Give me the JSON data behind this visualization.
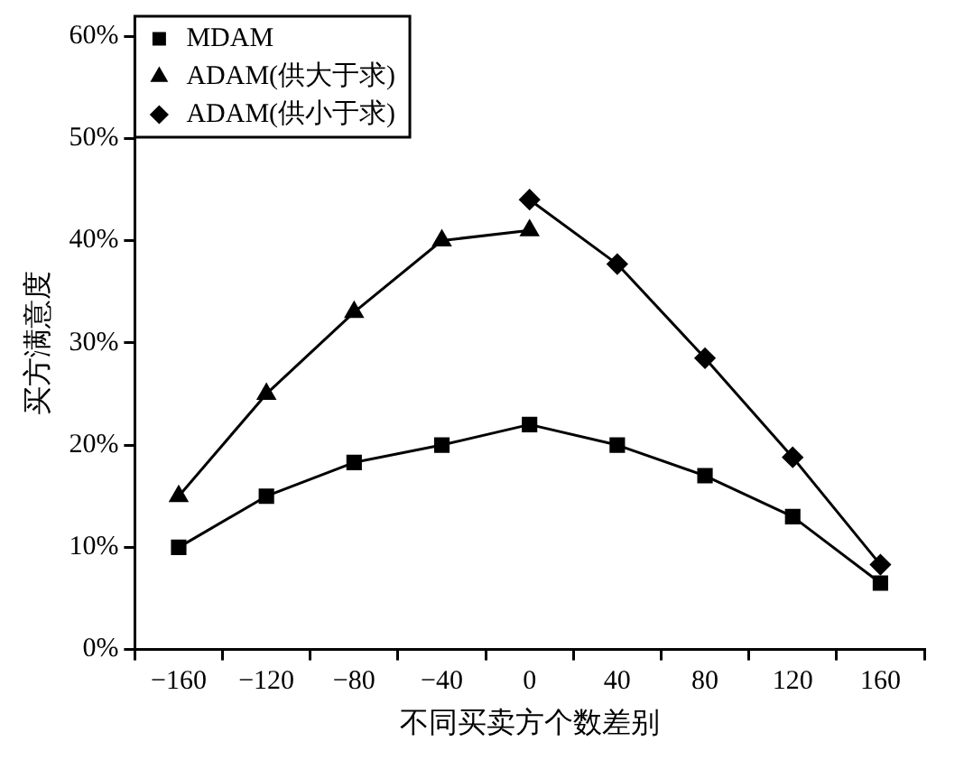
{
  "chart_data": {
    "type": "line",
    "xlabel": "不同买卖方个数差别",
    "ylabel": "买方满意度",
    "categories": [
      "−160",
      "−120",
      "−80",
      "−40",
      "0",
      "40",
      "80",
      "120",
      "160"
    ],
    "series": [
      {
        "name": "MDAM",
        "color": "#000000",
        "marker": "square",
        "values": [
          10,
          15,
          18.3,
          20,
          22,
          20,
          17,
          13,
          6.5
        ]
      },
      {
        "name": "ADAM(供大于求)",
        "color": "#000000",
        "marker": "triangle",
        "values": [
          15,
          25,
          33,
          40,
          41,
          null,
          null,
          null,
          null
        ]
      },
      {
        "name": "ADAM(供小于求)",
        "color": "#000000",
        "marker": "diamond",
        "values": [
          null,
          null,
          null,
          null,
          44,
          37.7,
          28.5,
          18.8,
          8.3
        ]
      }
    ],
    "ylim": [
      0,
      60
    ],
    "yticks": [
      {
        "value": 0,
        "label": "0%"
      },
      {
        "value": 10,
        "label": "10%"
      },
      {
        "value": 20,
        "label": "20%"
      },
      {
        "value": 30,
        "label": "30%"
      },
      {
        "value": 40,
        "label": "40%"
      },
      {
        "value": 50,
        "label": "50%"
      },
      {
        "value": 60,
        "label": "60%"
      }
    ],
    "grid": false,
    "legend": "top left",
    "line_style": "solid"
  }
}
